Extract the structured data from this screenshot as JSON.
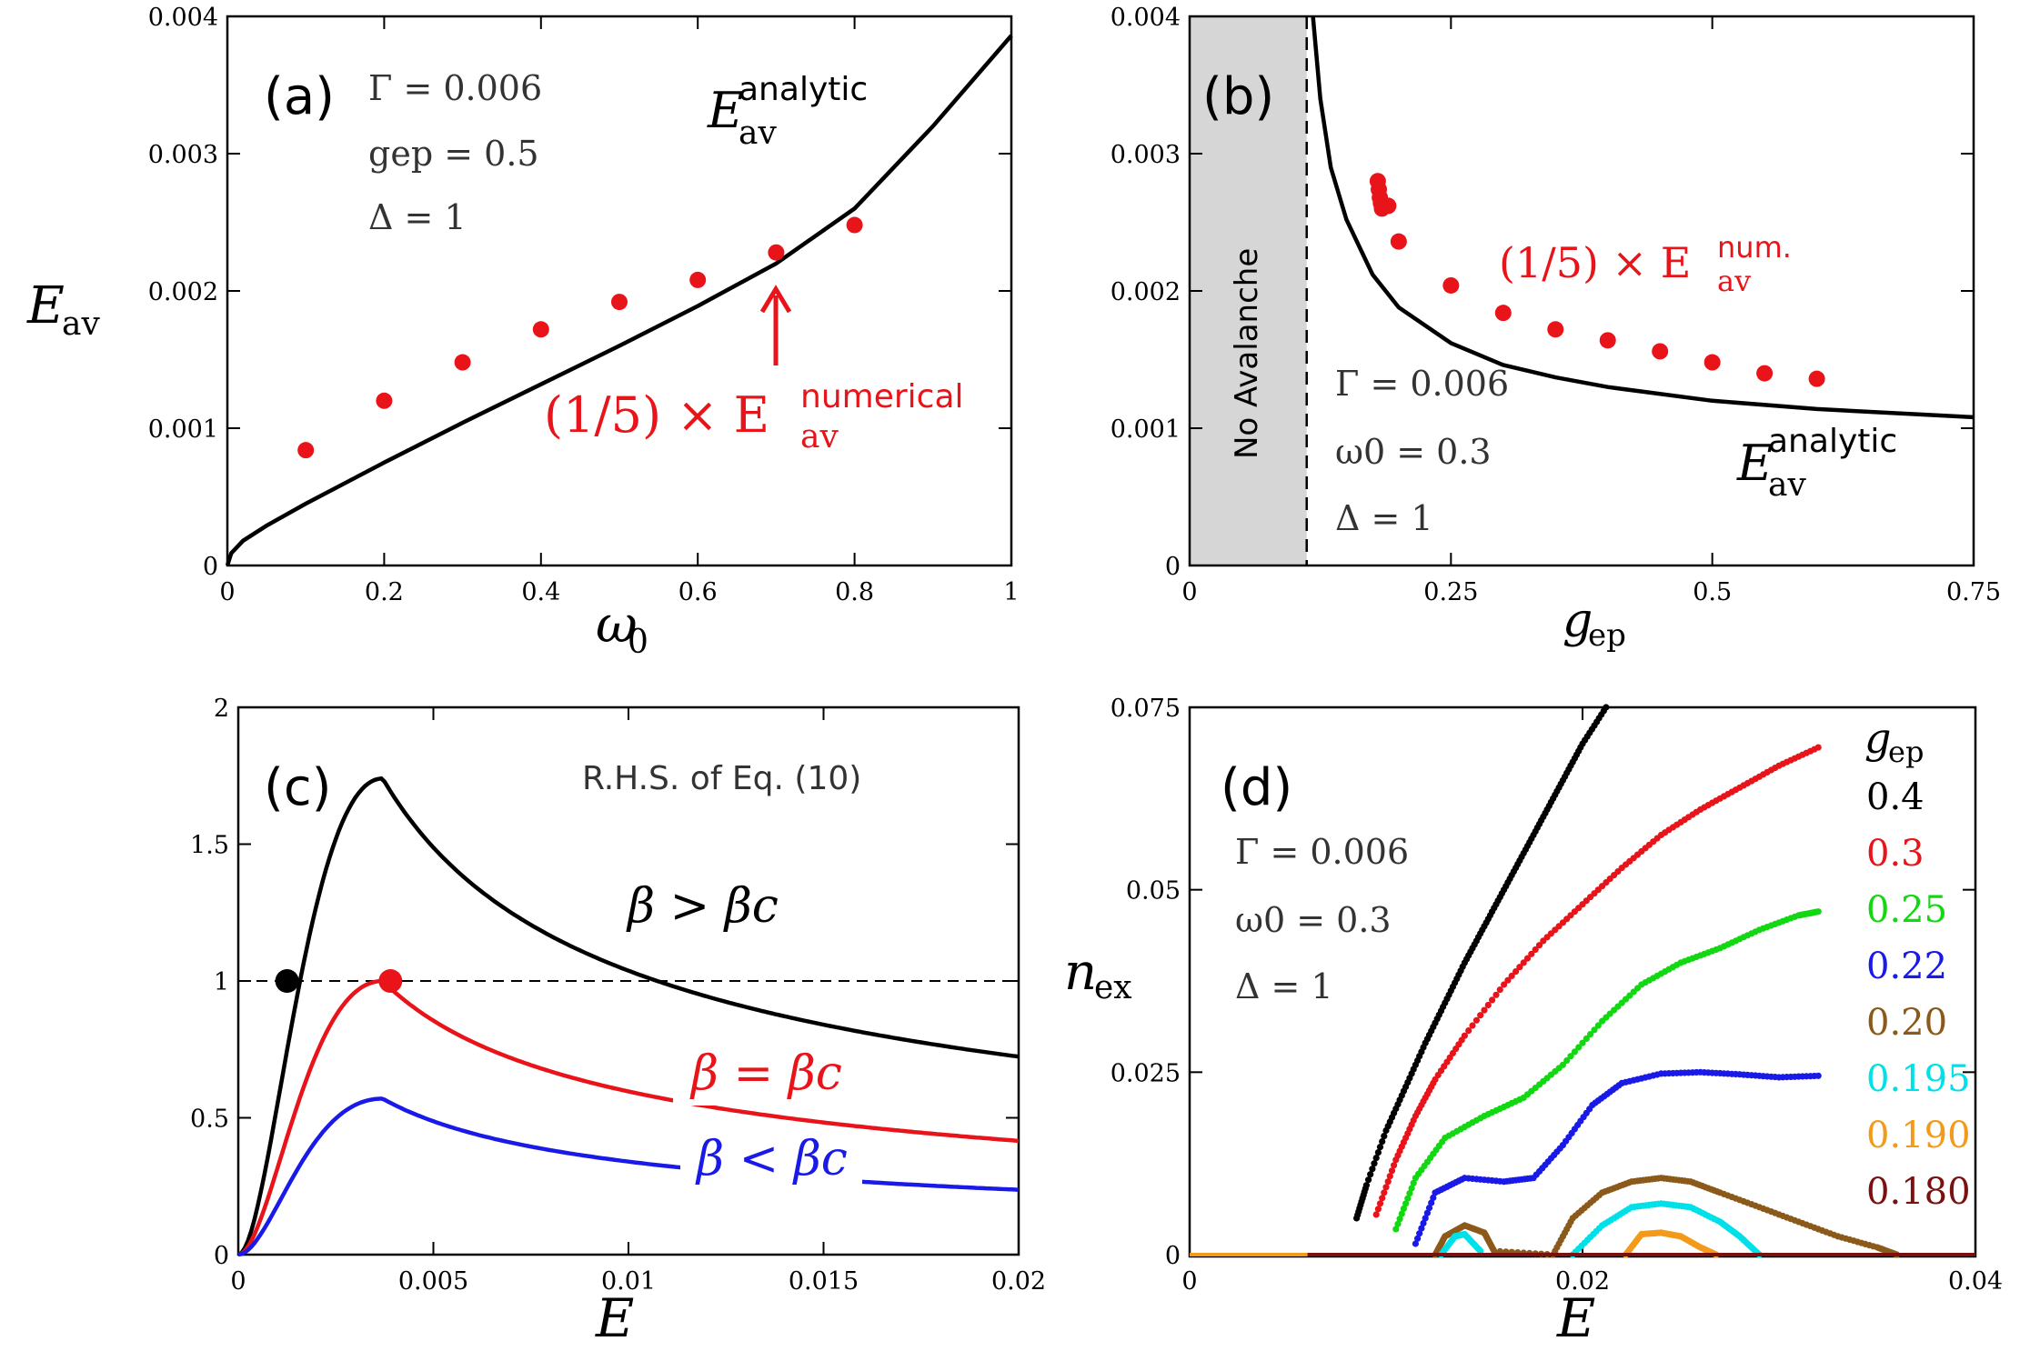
{
  "chart_data": [
    {
      "id": "a",
      "type": "line+scatter",
      "panel_label": "(a)",
      "xlabel": "ω0",
      "ylabel": "Eav",
      "xlim": [
        0,
        1
      ],
      "ylim": [
        0,
        0.004
      ],
      "x_ticks": [
        "0",
        "0.2",
        "0.4",
        "0.6",
        "0.8",
        "1"
      ],
      "y_ticks": [
        "0",
        "0.001",
        "0.002",
        "0.003",
        "0.004"
      ],
      "params": [
        "Γ = 0.006",
        "gep = 0.5",
        "Δ = 1"
      ],
      "series": [
        {
          "name": "Eav analytic",
          "color": "#000000",
          "kind": "line",
          "x": [
            0,
            0.005,
            0.02,
            0.05,
            0.1,
            0.2,
            0.3,
            0.4,
            0.5,
            0.6,
            0.7,
            0.8,
            0.9,
            1.0
          ],
          "y": [
            0,
            9e-05,
            0.00018,
            0.00029,
            0.00045,
            0.00075,
            0.00104,
            0.00132,
            0.0016,
            0.00189,
            0.0022,
            0.0026,
            0.0032,
            0.00386
          ]
        },
        {
          "name": "(1/5) × Eav numerical",
          "color": "#e8141a",
          "kind": "scatter",
          "x": [
            0.1,
            0.2,
            0.3,
            0.4,
            0.5,
            0.6,
            0.7,
            0.8
          ],
          "y": [
            0.00084,
            0.0012,
            0.00148,
            0.00172,
            0.00192,
            0.00208,
            0.00228,
            0.00248
          ]
        }
      ],
      "annotations": {
        "analytic_base": "E",
        "analytic_sub": "av",
        "analytic_sup": "analytic",
        "numerical_prefix": "(1/5) × E",
        "numerical_sub": "av",
        "numerical_sup": "numerical"
      }
    },
    {
      "id": "b",
      "type": "line+scatter",
      "panel_label": "(b)",
      "xlabel": "gep",
      "ylabel": "",
      "xlim": [
        0,
        0.75
      ],
      "ylim": [
        0,
        0.004
      ],
      "x_ticks": [
        "0",
        "0.25",
        "0.5",
        "0.75"
      ],
      "y_ticks": [
        "0",
        "0.001",
        "0.002",
        "0.003",
        "0.004"
      ],
      "params": [
        "Γ = 0.006",
        "ω0 = 0.3",
        "Δ = 1"
      ],
      "shaded_region": {
        "x0": 0,
        "x1": 0.112,
        "label": "No Avalanche"
      },
      "critical_line_x": 0.112,
      "series": [
        {
          "name": "Eav analytic",
          "color": "#000000",
          "kind": "line",
          "x": [
            0.118,
            0.125,
            0.135,
            0.15,
            0.175,
            0.2,
            0.25,
            0.3,
            0.35,
            0.4,
            0.5,
            0.6,
            0.75
          ],
          "y": [
            0.004,
            0.0034,
            0.0029,
            0.00252,
            0.00212,
            0.00188,
            0.00162,
            0.00146,
            0.00137,
            0.0013,
            0.0012,
            0.00114,
            0.00108
          ]
        },
        {
          "name": "(1/5) × Eav num.",
          "color": "#e8141a",
          "kind": "scatter",
          "x": [
            0.18,
            0.181,
            0.182,
            0.183,
            0.184,
            0.19,
            0.2,
            0.25,
            0.3,
            0.35,
            0.4,
            0.45,
            0.5,
            0.55,
            0.6
          ],
          "y": [
            0.0028,
            0.00274,
            0.00268,
            0.00264,
            0.0026,
            0.00262,
            0.00236,
            0.00204,
            0.00184,
            0.00172,
            0.00164,
            0.00156,
            0.00148,
            0.0014,
            0.00136
          ]
        }
      ],
      "annotations": {
        "analytic_base": "E",
        "analytic_sub": "av",
        "analytic_sup": "analytic",
        "numerical_prefix": "(1/5) × E",
        "numerical_sub": "av",
        "numerical_sup": "num."
      }
    },
    {
      "id": "c",
      "type": "line",
      "panel_label": "(c)",
      "title": "R.H.S. of Eq. (10)",
      "xlabel": "E",
      "ylabel": "",
      "xlim": [
        0,
        0.02
      ],
      "ylim": [
        0,
        2
      ],
      "x_ticks": [
        "0",
        "0.005",
        "0.01",
        "0.015",
        "0.02"
      ],
      "y_ticks": [
        "0",
        "0.5",
        "1",
        "1.5",
        "2"
      ],
      "reference_line_y": 1,
      "series": [
        {
          "name": "β > βc",
          "color": "#000000",
          "peak_value": 1.74,
          "peak_x": 0.0037
        },
        {
          "name": "β = βc",
          "color": "#e8141a",
          "peak_value": 1.0,
          "peak_x": 0.0037
        },
        {
          "name": "β < βc",
          "color": "#1a1ae8",
          "peak_value": 0.57,
          "peak_x": 0.0037
        }
      ],
      "markers": [
        {
          "x": 0.00125,
          "y": 1.0,
          "color": "#000000"
        },
        {
          "x": 0.0039,
          "y": 1.0,
          "color": "#e8141a"
        }
      ]
    },
    {
      "id": "d",
      "type": "scatter",
      "panel_label": "(d)",
      "xlabel": "E",
      "ylabel": "nex",
      "xlim": [
        0,
        0.04
      ],
      "ylim": [
        0,
        0.075
      ],
      "x_ticks": [
        "0",
        "0.02",
        "0.04"
      ],
      "y_ticks": [
        "0",
        "0.025",
        "0.05",
        "0.075"
      ],
      "params": [
        "Γ = 0.006",
        "ω0 = 0.3",
        "Δ = 1"
      ],
      "legend_title": "gep",
      "series": [
        {
          "name": "0.4",
          "color": "#000000",
          "x": [
            0.0085,
            0.009,
            0.01,
            0.011,
            0.012,
            0.013,
            0.014,
            0.015,
            0.016,
            0.017,
            0.018,
            0.019,
            0.02,
            0.0212
          ],
          "y": [
            0.005,
            0.0095,
            0.017,
            0.023,
            0.029,
            0.0345,
            0.04,
            0.045,
            0.05,
            0.055,
            0.06,
            0.065,
            0.07,
            0.075
          ]
        },
        {
          "name": "0.3",
          "color": "#e8141a",
          "x": [
            0.0095,
            0.0105,
            0.0115,
            0.0125,
            0.014,
            0.016,
            0.018,
            0.02,
            0.022,
            0.024,
            0.026,
            0.028,
            0.03,
            0.032
          ],
          "y": [
            0.0055,
            0.013,
            0.019,
            0.024,
            0.03,
            0.037,
            0.043,
            0.048,
            0.053,
            0.0575,
            0.061,
            0.064,
            0.067,
            0.0695
          ]
        },
        {
          "name": "0.25",
          "color": "#12d812",
          "x": [
            0.0105,
            0.0115,
            0.013,
            0.015,
            0.017,
            0.019,
            0.021,
            0.023,
            0.025,
            0.027,
            0.029,
            0.031,
            0.032
          ],
          "y": [
            0.0035,
            0.0105,
            0.016,
            0.019,
            0.0215,
            0.026,
            0.032,
            0.037,
            0.04,
            0.042,
            0.0445,
            0.0465,
            0.047
          ]
        },
        {
          "name": "0.22",
          "color": "#1a1ae8",
          "x": [
            0.0115,
            0.0125,
            0.014,
            0.016,
            0.0175,
            0.019,
            0.0205,
            0.022,
            0.024,
            0.026,
            0.028,
            0.03,
            0.032
          ],
          "y": [
            0.0015,
            0.0085,
            0.0105,
            0.01,
            0.0105,
            0.015,
            0.0205,
            0.0235,
            0.0248,
            0.025,
            0.0247,
            0.0243,
            0.0245
          ]
        },
        {
          "name": "0.20",
          "color": "#8b5a1a",
          "x": [
            0.0125,
            0.013,
            0.014,
            0.015,
            0.0155,
            0.0185,
            0.0195,
            0.021,
            0.0225,
            0.024,
            0.0255,
            0.027,
            0.029,
            0.031,
            0.033,
            0.035,
            0.036
          ],
          "y": [
            0.0,
            0.0025,
            0.004,
            0.003,
            0.0005,
            0.0,
            0.005,
            0.0085,
            0.01,
            0.0105,
            0.01,
            0.0085,
            0.0065,
            0.0045,
            0.0025,
            0.001,
            0.0
          ]
        },
        {
          "name": "0.195",
          "color": "#00e0e8",
          "x": [
            0.0128,
            0.0135,
            0.014,
            0.0148,
            0.0195,
            0.021,
            0.0225,
            0.024,
            0.0255,
            0.027,
            0.028,
            0.029
          ],
          "y": [
            0.0,
            0.0025,
            0.0028,
            0.0005,
            0.0,
            0.004,
            0.0065,
            0.007,
            0.0065,
            0.0045,
            0.0025,
            0.0
          ]
        },
        {
          "name": "0.190",
          "color": "#f49a1a",
          "x": [
            0.0222,
            0.023,
            0.024,
            0.025,
            0.026,
            0.0268
          ],
          "y": [
            0.0,
            0.0028,
            0.003,
            0.0025,
            0.001,
            0.0
          ]
        },
        {
          "name": "0.180",
          "color": "#7a1010",
          "x": [
            0.0,
            0.01,
            0.02,
            0.03,
            0.04
          ],
          "y": [
            0.0,
            0.0,
            0.0,
            0.0,
            0.0
          ]
        }
      ]
    }
  ]
}
